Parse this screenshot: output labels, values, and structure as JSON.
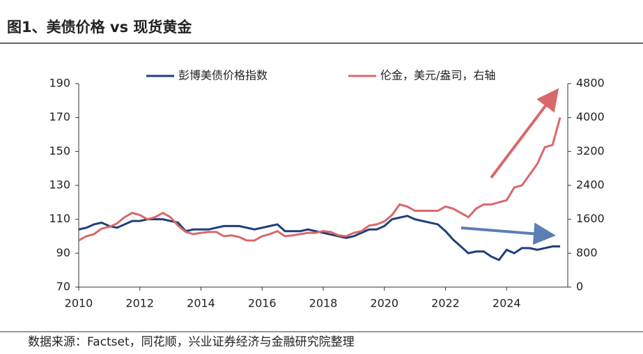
{
  "title": "图1、美债价格 vs 现货黄金",
  "source": "数据来源：Factset，同花顺，兴业证券经济与金融研究院整理",
  "chart_data": {
    "type": "line",
    "x": [
      2010,
      2010.25,
      2010.5,
      2010.75,
      2011,
      2011.25,
      2011.5,
      2011.75,
      2012,
      2012.25,
      2012.5,
      2012.75,
      2013,
      2013.25,
      2013.5,
      2013.75,
      2014,
      2014.25,
      2014.5,
      2014.75,
      2015,
      2015.25,
      2015.5,
      2015.75,
      2016,
      2016.25,
      2016.5,
      2016.75,
      2017,
      2017.25,
      2017.5,
      2017.75,
      2018,
      2018.25,
      2018.5,
      2018.75,
      2019,
      2019.25,
      2019.5,
      2019.75,
      2020,
      2020.25,
      2020.5,
      2020.75,
      2021,
      2021.25,
      2021.5,
      2021.75,
      2022,
      2022.25,
      2022.5,
      2022.75,
      2023,
      2023.25,
      2023.5,
      2023.75,
      2024,
      2024.25,
      2024.5,
      2024.75,
      2025,
      2025.25,
      2025.5,
      2025.75
    ],
    "series": [
      {
        "name": "彭博美债价格指数",
        "color": "#1f3f7a",
        "values": [
          104,
          105,
          107,
          108,
          106,
          105,
          107,
          109,
          109,
          110,
          110,
          110,
          109,
          108,
          103,
          104,
          104,
          104,
          105,
          106,
          106,
          106,
          105,
          104,
          105,
          106,
          107,
          103,
          103,
          103,
          104,
          103,
          102,
          101,
          100,
          99,
          100,
          102,
          104,
          104,
          106,
          110,
          111,
          112,
          110,
          109,
          108,
          107,
          103,
          98,
          94,
          90,
          91,
          91,
          88,
          86,
          92,
          90,
          93,
          93,
          92,
          93,
          94,
          94
        ]
      },
      {
        "name": "伦金，美元/盎司，右轴",
        "color": "#d9686a",
        "axis": "y2",
        "values": [
          1100,
          1200,
          1250,
          1380,
          1420,
          1500,
          1650,
          1750,
          1700,
          1600,
          1650,
          1750,
          1650,
          1450,
          1300,
          1250,
          1280,
          1300,
          1300,
          1200,
          1220,
          1180,
          1100,
          1100,
          1200,
          1250,
          1320,
          1200,
          1220,
          1250,
          1280,
          1280,
          1320,
          1300,
          1220,
          1200,
          1280,
          1320,
          1450,
          1480,
          1550,
          1700,
          1950,
          1900,
          1800,
          1800,
          1800,
          1800,
          1900,
          1850,
          1750,
          1650,
          1850,
          1950,
          1950,
          2000,
          2050,
          2350,
          2400,
          2650,
          2900,
          3300,
          3350,
          4000
        ]
      }
    ],
    "xlim": [
      2010,
      2026
    ],
    "xticks": [
      2010,
      2012,
      2014,
      2016,
      2018,
      2020,
      2022,
      2024
    ],
    "ylim": [
      70,
      190
    ],
    "yticks": [
      70,
      90,
      110,
      130,
      150,
      170,
      190
    ],
    "y2lim": [
      0,
      4800
    ],
    "y2ticks": [
      0,
      800,
      1600,
      2400,
      3200,
      4000,
      4800
    ],
    "grid": false
  }
}
